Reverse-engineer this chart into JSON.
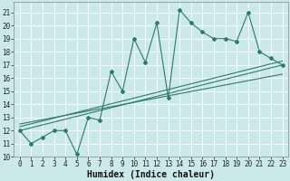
{
  "xlabel": "Humidex (Indice chaleur)",
  "bg_color": "#cce9e9",
  "grid_color": "#b8d8d8",
  "line_color": "#2d7a6a",
  "xlim": [
    -0.5,
    23.5
  ],
  "ylim": [
    10,
    21.8
  ],
  "xticks": [
    0,
    1,
    2,
    3,
    4,
    5,
    6,
    7,
    8,
    9,
    10,
    11,
    12,
    13,
    14,
    15,
    16,
    17,
    18,
    19,
    20,
    21,
    22,
    23
  ],
  "yticks": [
    10,
    11,
    12,
    13,
    14,
    15,
    16,
    17,
    18,
    19,
    20,
    21
  ],
  "x_data": [
    0,
    1,
    2,
    3,
    4,
    5,
    6,
    7,
    8,
    9,
    10,
    11,
    12,
    13,
    14,
    15,
    16,
    17,
    18,
    19,
    20,
    21,
    22,
    23
  ],
  "y_data": [
    12,
    11,
    11.5,
    12,
    12,
    10.2,
    13,
    12.8,
    16.5,
    15,
    19,
    17.2,
    20.2,
    14.5,
    21.2,
    20.2,
    19.5,
    19,
    19,
    18.8,
    21,
    18,
    17.5,
    17
  ],
  "reg_lines": [
    [
      [
        0,
        23
      ],
      [
        12.0,
        17.0
      ]
    ],
    [
      [
        0,
        23
      ],
      [
        12.3,
        17.3
      ]
    ],
    [
      [
        0,
        23
      ],
      [
        12.5,
        16.3
      ]
    ]
  ],
  "xlabel_fontsize": 7,
  "tick_fontsize": 5.5
}
